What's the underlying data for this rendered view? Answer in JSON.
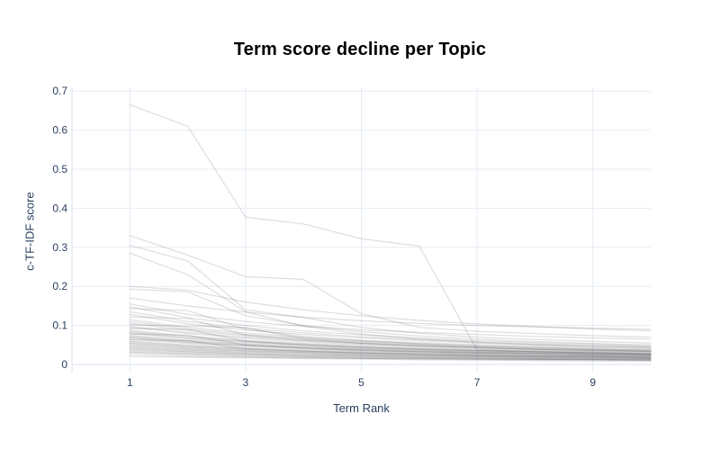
{
  "figure": {
    "title": "Term score decline per Topic"
  },
  "chart_data": {
    "type": "line",
    "title": "Term score decline per Topic",
    "xlabel": "Term Rank",
    "ylabel": "c-TF-IDF score",
    "x": [
      1,
      2,
      3,
      4,
      5,
      6,
      7,
      8,
      9,
      10
    ],
    "xlim": [
      0,
      10
    ],
    "ylim": [
      -0.021,
      0.711
    ],
    "xtick_values": [
      1,
      3,
      5,
      7,
      9
    ],
    "xtick_labels": [
      "1",
      "3",
      "5",
      "7",
      "9"
    ],
    "ytick_values": [
      0,
      0.1,
      0.2,
      0.3,
      0.4,
      0.5,
      0.6,
      0.7
    ],
    "ytick_labels": [
      "0",
      "0.1",
      "0.2",
      "0.3",
      "0.4",
      "0.5",
      "0.6",
      "0.7"
    ],
    "grid": true,
    "legend": false,
    "colors": {
      "background": "#ffffff",
      "grid": "#e5ecf6",
      "axis_text": "#2a3f5f",
      "title_text": "#000000",
      "line": "#1f1f28"
    },
    "line_opacity": 0.15,
    "series": [
      {
        "values": [
          0.665,
          0.61,
          0.377,
          0.36,
          0.322,
          0.303,
          0.037,
          0.033,
          0.03,
          0.028
        ]
      },
      {
        "values": [
          0.33,
          0.28,
          0.225,
          0.218,
          0.13,
          0.095,
          0.085,
          0.079,
          0.074,
          0.07
        ]
      },
      {
        "values": [
          0.305,
          0.265,
          0.14,
          0.12,
          0.095,
          0.08,
          0.07,
          0.064,
          0.059,
          0.055
        ]
      },
      {
        "values": [
          0.285,
          0.23,
          0.135,
          0.098,
          0.078,
          0.065,
          0.057,
          0.051,
          0.047,
          0.044
        ]
      },
      {
        "values": [
          0.2,
          0.19,
          0.16,
          0.14,
          0.125,
          0.113,
          0.104,
          0.097,
          0.091,
          0.086
        ]
      },
      {
        "values": [
          0.193,
          0.186,
          0.125,
          0.1,
          0.084,
          0.073,
          0.065,
          0.059,
          0.054,
          0.05
        ]
      },
      {
        "values": [
          0.17,
          0.15,
          0.134,
          0.121,
          0.112,
          0.105,
          0.1,
          0.096,
          0.093,
          0.09
        ]
      },
      {
        "values": [
          0.155,
          0.128,
          0.11,
          0.098,
          0.089,
          0.082,
          0.077,
          0.072,
          0.068,
          0.065
        ]
      },
      {
        "values": [
          0.148,
          0.12,
          0.1,
          0.086,
          0.076,
          0.068,
          0.061,
          0.056,
          0.052,
          0.048
        ]
      },
      {
        "values": [
          0.143,
          0.138,
          0.09,
          0.072,
          0.061,
          0.053,
          0.047,
          0.043,
          0.039,
          0.036
        ]
      },
      {
        "values": [
          0.135,
          0.11,
          0.093,
          0.081,
          0.071,
          0.064,
          0.058,
          0.053,
          0.049,
          0.045
        ]
      },
      {
        "values": [
          0.128,
          0.104,
          0.088,
          0.077,
          0.068,
          0.061,
          0.055,
          0.05,
          0.046,
          0.043
        ]
      },
      {
        "values": [
          0.122,
          0.118,
          0.075,
          0.062,
          0.054,
          0.048,
          0.043,
          0.039,
          0.036,
          0.034
        ]
      },
      {
        "values": [
          0.115,
          0.095,
          0.081,
          0.07,
          0.062,
          0.056,
          0.051,
          0.047,
          0.043,
          0.04
        ]
      },
      {
        "values": [
          0.11,
          0.091,
          0.077,
          0.067,
          0.059,
          0.053,
          0.048,
          0.044,
          0.041,
          0.038
        ]
      },
      {
        "values": [
          0.105,
          0.087,
          0.074,
          0.064,
          0.057,
          0.051,
          0.046,
          0.042,
          0.039,
          0.036
        ]
      },
      {
        "values": [
          0.102,
          0.098,
          0.095,
          0.066,
          0.055,
          0.048,
          0.043,
          0.039,
          0.036,
          0.033
        ]
      },
      {
        "values": [
          0.098,
          0.082,
          0.07,
          0.061,
          0.054,
          0.048,
          0.044,
          0.04,
          0.037,
          0.034
        ]
      },
      {
        "values": [
          0.095,
          0.079,
          0.067,
          0.058,
          0.051,
          0.046,
          0.042,
          0.038,
          0.035,
          0.033
        ]
      },
      {
        "values": [
          0.092,
          0.09,
          0.06,
          0.05,
          0.043,
          0.038,
          0.035,
          0.032,
          0.029,
          0.027
        ]
      },
      {
        "values": [
          0.088,
          0.073,
          0.062,
          0.054,
          0.048,
          0.043,
          0.039,
          0.036,
          0.033,
          0.031
        ]
      },
      {
        "values": [
          0.085,
          0.071,
          0.06,
          0.052,
          0.046,
          0.041,
          0.037,
          0.034,
          0.032,
          0.029
        ]
      },
      {
        "values": [
          0.082,
          0.068,
          0.058,
          0.05,
          0.044,
          0.04,
          0.036,
          0.033,
          0.03,
          0.028
        ]
      },
      {
        "values": [
          0.08,
          0.066,
          0.056,
          0.049,
          0.043,
          0.039,
          0.035,
          0.032,
          0.03,
          0.027
        ]
      },
      {
        "values": [
          0.078,
          0.075,
          0.05,
          0.042,
          0.036,
          0.032,
          0.029,
          0.027,
          0.025,
          0.023
        ]
      },
      {
        "values": [
          0.075,
          0.062,
          0.053,
          0.046,
          0.041,
          0.037,
          0.033,
          0.03,
          0.028,
          0.026
        ]
      },
      {
        "values": [
          0.072,
          0.06,
          0.051,
          0.044,
          0.039,
          0.035,
          0.032,
          0.029,
          0.027,
          0.025
        ]
      },
      {
        "values": [
          0.07,
          0.058,
          0.049,
          0.043,
          0.038,
          0.034,
          0.031,
          0.028,
          0.026,
          0.024
        ]
      },
      {
        "values": [
          0.068,
          0.056,
          0.048,
          0.042,
          0.037,
          0.033,
          0.03,
          0.028,
          0.025,
          0.024
        ]
      },
      {
        "values": [
          0.065,
          0.054,
          0.046,
          0.04,
          0.035,
          0.032,
          0.029,
          0.026,
          0.024,
          0.023
        ]
      },
      {
        "values": [
          0.063,
          0.061,
          0.04,
          0.034,
          0.029,
          0.026,
          0.024,
          0.022,
          0.02,
          0.019
        ]
      },
      {
        "values": [
          0.06,
          0.05,
          0.042,
          0.037,
          0.033,
          0.029,
          0.027,
          0.024,
          0.022,
          0.021
        ]
      },
      {
        "values": [
          0.058,
          0.048,
          0.041,
          0.035,
          0.031,
          0.028,
          0.026,
          0.023,
          0.022,
          0.02
        ]
      },
      {
        "values": [
          0.055,
          0.046,
          0.039,
          0.034,
          0.03,
          0.027,
          0.024,
          0.022,
          0.021,
          0.019
        ]
      },
      {
        "values": [
          0.053,
          0.044,
          0.037,
          0.032,
          0.029,
          0.026,
          0.023,
          0.021,
          0.02,
          0.018
        ]
      },
      {
        "values": [
          0.05,
          0.042,
          0.035,
          0.031,
          0.027,
          0.024,
          0.022,
          0.02,
          0.019,
          0.017
        ]
      },
      {
        "values": [
          0.048,
          0.04,
          0.034,
          0.029,
          0.026,
          0.023,
          0.021,
          0.019,
          0.018,
          0.017
        ]
      },
      {
        "values": [
          0.045,
          0.037,
          0.032,
          0.028,
          0.024,
          0.022,
          0.02,
          0.018,
          0.017,
          0.016
        ]
      },
      {
        "values": [
          0.043,
          0.036,
          0.03,
          0.026,
          0.023,
          0.021,
          0.019,
          0.017,
          0.016,
          0.015
        ]
      },
      {
        "values": [
          0.04,
          0.033,
          0.028,
          0.024,
          0.022,
          0.019,
          0.018,
          0.016,
          0.015,
          0.014
        ]
      },
      {
        "values": [
          0.038,
          0.032,
          0.027,
          0.023,
          0.021,
          0.018,
          0.017,
          0.015,
          0.014,
          0.013
        ]
      },
      {
        "values": [
          0.035,
          0.029,
          0.025,
          0.021,
          0.019,
          0.017,
          0.015,
          0.014,
          0.013,
          0.012
        ]
      },
      {
        "values": [
          0.032,
          0.027,
          0.023,
          0.02,
          0.017,
          0.016,
          0.014,
          0.013,
          0.012,
          0.011
        ]
      },
      {
        "values": [
          0.03,
          0.025,
          0.021,
          0.018,
          0.016,
          0.014,
          0.013,
          0.012,
          0.011,
          0.01
        ]
      },
      {
        "values": [
          0.025,
          0.021,
          0.018,
          0.015,
          0.014,
          0.012,
          0.011,
          0.01,
          0.009,
          0.009
        ]
      },
      {
        "values": [
          0.02,
          0.019,
          0.018,
          0.017,
          0.016,
          0.015,
          0.014,
          0.013,
          0.013,
          0.012
        ]
      }
    ]
  }
}
